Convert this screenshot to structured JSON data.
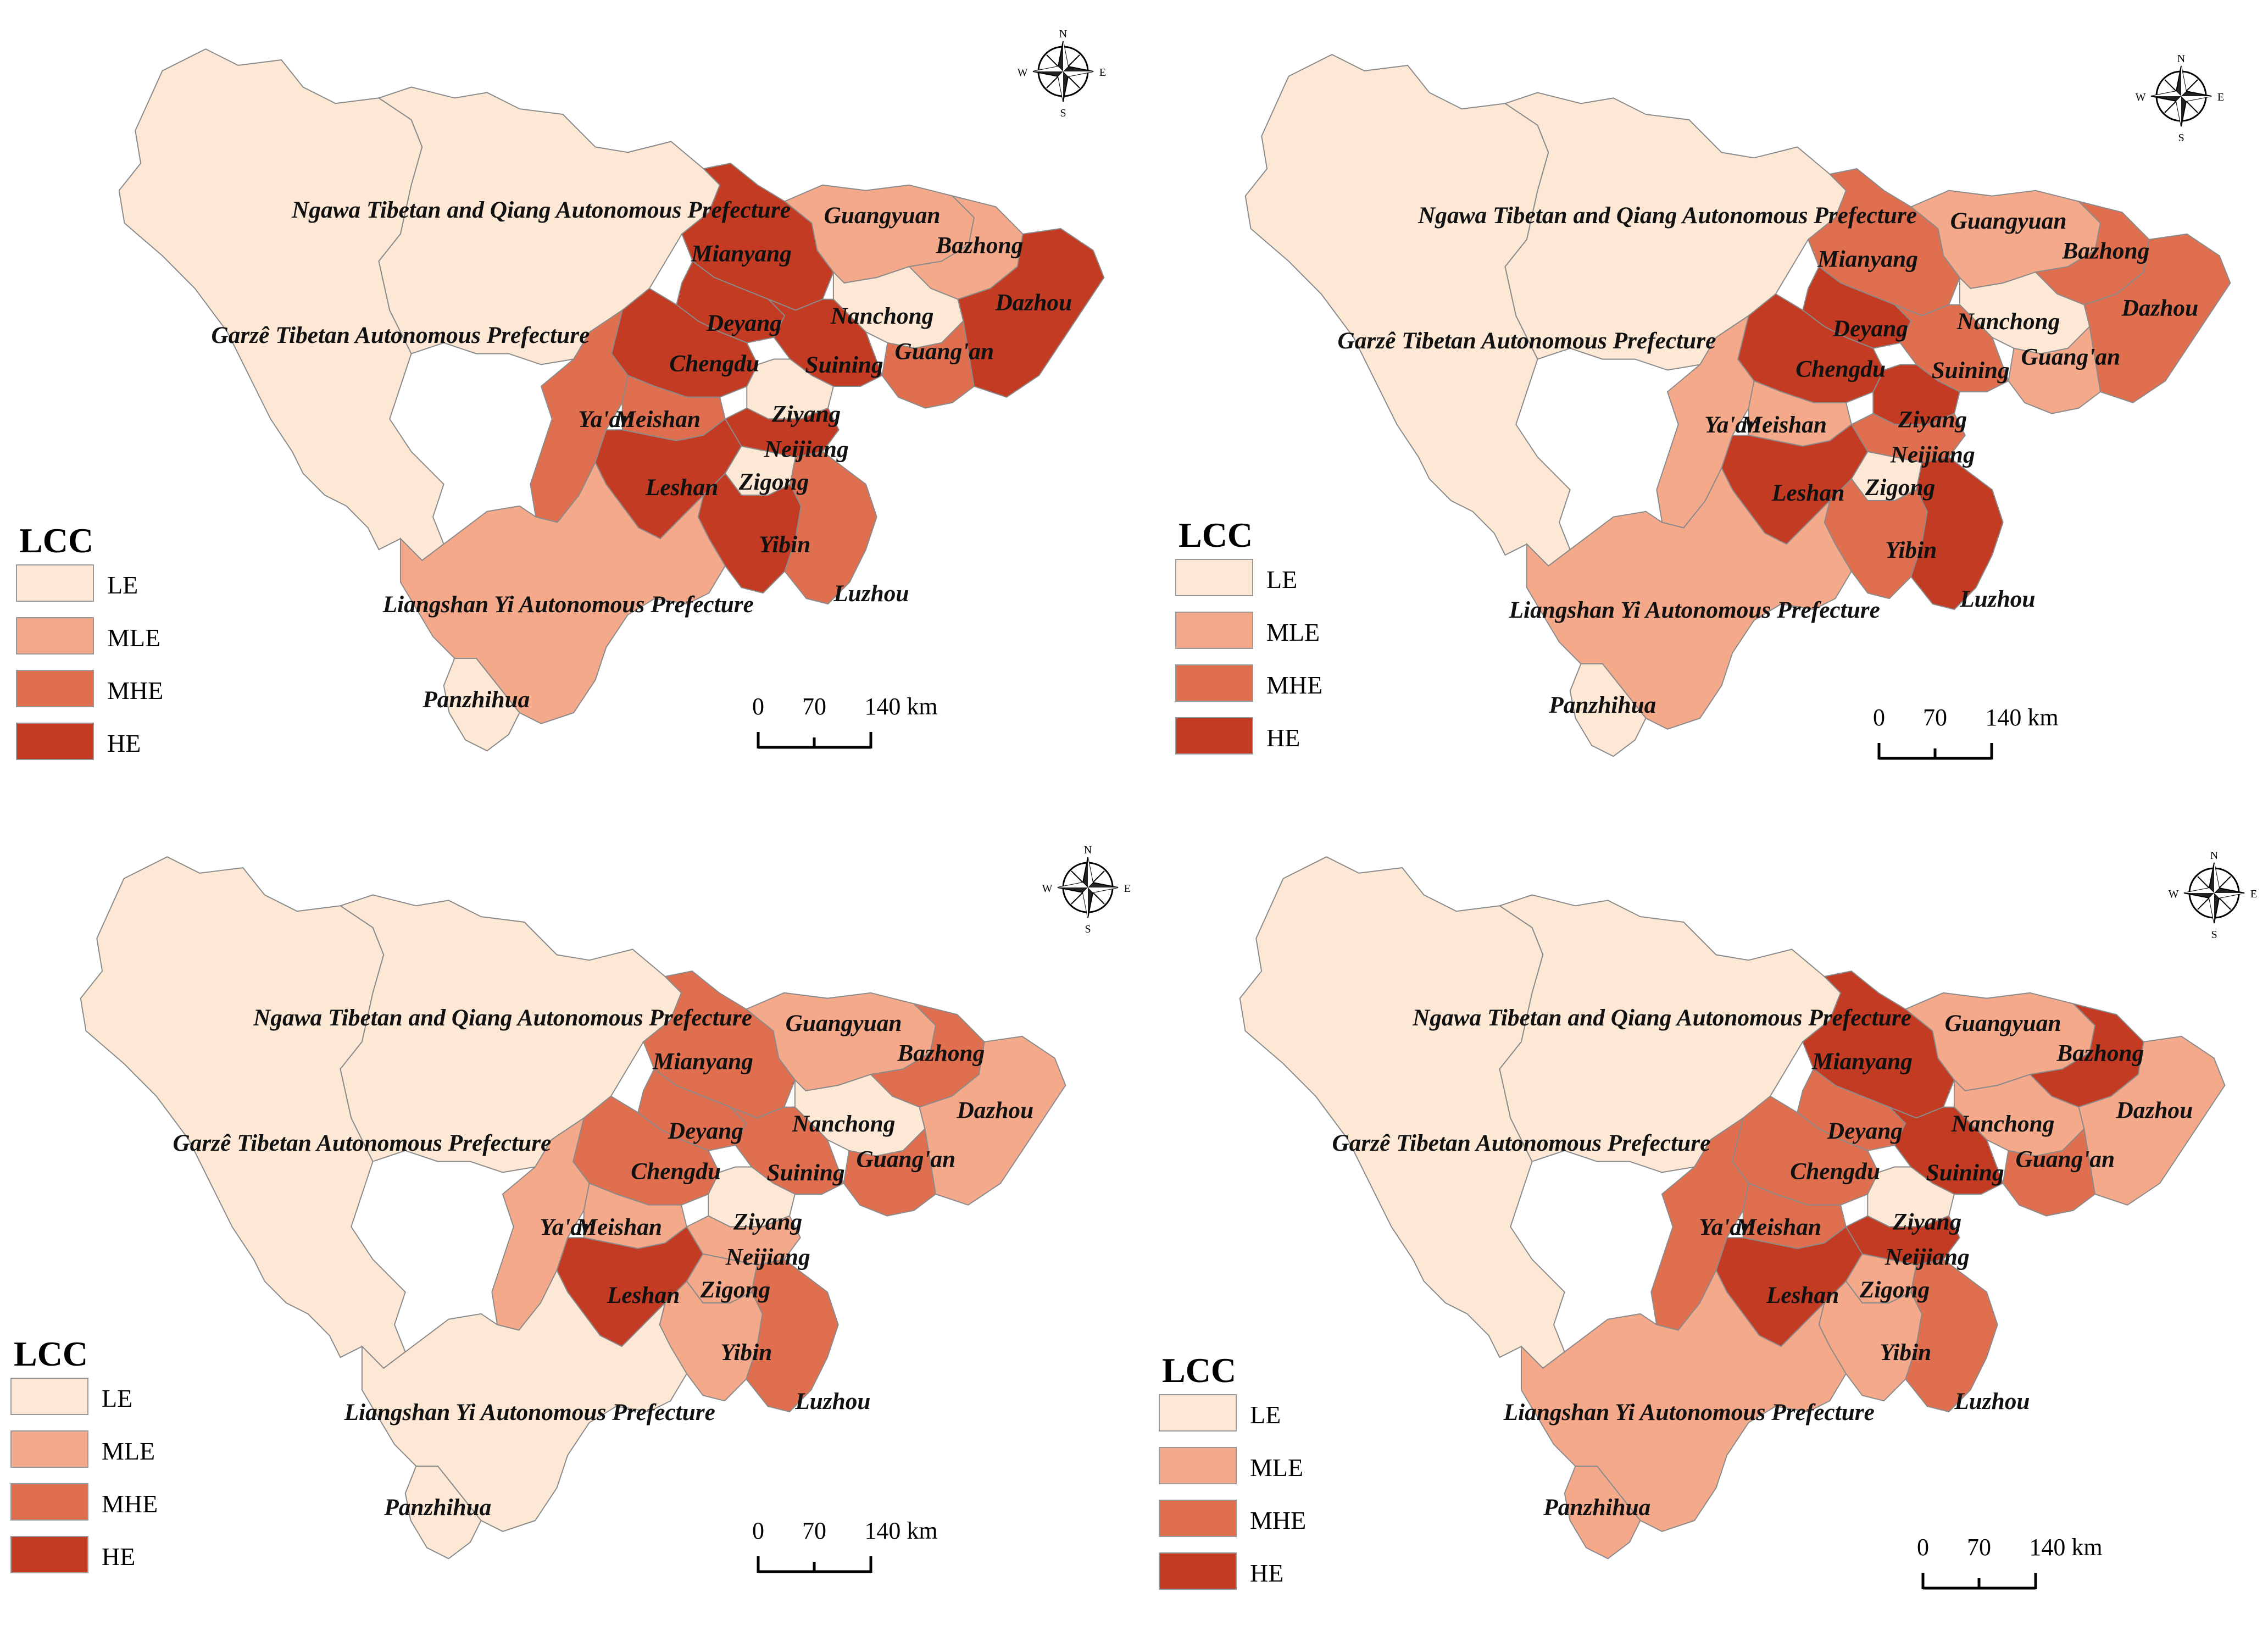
{
  "colors": {
    "LE": "#fde8d6",
    "MLE": "#f4a98a",
    "MHE": "#df6f4f",
    "HE": "#c23b22",
    "border": "#8a8a8a"
  },
  "legend": {
    "title": "LCC",
    "items": [
      {
        "key": "LE",
        "label": "LE"
      },
      {
        "key": "MLE",
        "label": "MLE"
      },
      {
        "key": "MHE",
        "label": "MHE"
      },
      {
        "key": "HE",
        "label": "HE"
      }
    ]
  },
  "scale": {
    "ticks": [
      "0",
      "70",
      "140 km"
    ]
  },
  "compass": {
    "n": "N",
    "s": "S",
    "e": "E",
    "w": "W"
  },
  "region_names": {
    "ngawa": "Ngawa Tibetan and Qiang Autonomous Prefecture",
    "garze": "Garzê Tibetan Autonomous Prefecture",
    "liangshan": "Liangshan Yi Autonomous Prefecture",
    "panzhihua": "Panzhihua",
    "guangyuan": "Guangyuan",
    "bazhong": "Bazhong",
    "dazhou": "Dazhou",
    "mianyang": "Mianyang",
    "nanchong": "Nanchong",
    "guangan": "Guang'an",
    "deyang": "Deyang",
    "chengdu": "Chengdu",
    "suining": "Suining",
    "yaan": "Ya'an",
    "meishan": "Meishan",
    "ziyang": "Ziyang",
    "neijiang": "Neijiang",
    "leshan": "Leshan",
    "zigong": "Zigong",
    "yibin": "Yibin",
    "luzhou": "Luzhou"
  },
  "maps": [
    {
      "classes": {
        "garze": "LE",
        "ngawa": "LE",
        "liangshan": "MLE",
        "panzhihua": "LE",
        "guangyuan": "MLE",
        "bazhong": "MLE",
        "dazhou": "HE",
        "mianyang": "HE",
        "nanchong": "LE",
        "guangan": "MHE",
        "deyang": "HE",
        "chengdu": "HE",
        "suining": "HE",
        "yaan": "MHE",
        "meishan": "MHE",
        "ziyang": "LE",
        "neijiang": "HE",
        "leshan": "HE",
        "zigong": "LE",
        "yibin": "HE",
        "luzhou": "MHE"
      }
    },
    {
      "classes": {
        "garze": "LE",
        "ngawa": "LE",
        "liangshan": "MLE",
        "panzhihua": "LE",
        "guangyuan": "MLE",
        "bazhong": "MHE",
        "dazhou": "MHE",
        "mianyang": "MHE",
        "nanchong": "LE",
        "guangan": "MLE",
        "deyang": "HE",
        "chengdu": "HE",
        "suining": "MHE",
        "yaan": "MLE",
        "meishan": "MLE",
        "ziyang": "HE",
        "neijiang": "MHE",
        "leshan": "HE",
        "zigong": "LE",
        "yibin": "MHE",
        "luzhou": "HE"
      }
    },
    {
      "classes": {
        "garze": "LE",
        "ngawa": "LE",
        "liangshan": "LE",
        "panzhihua": "LE",
        "guangyuan": "MLE",
        "bazhong": "MHE",
        "dazhou": "MLE",
        "mianyang": "MHE",
        "nanchong": "LE",
        "guangan": "MHE",
        "deyang": "MHE",
        "chengdu": "MHE",
        "suining": "MHE",
        "yaan": "MLE",
        "meishan": "MLE",
        "ziyang": "LE",
        "neijiang": "MLE",
        "leshan": "HE",
        "zigong": "MLE",
        "yibin": "MLE",
        "luzhou": "MHE"
      }
    },
    {
      "classes": {
        "garze": "LE",
        "ngawa": "LE",
        "liangshan": "MLE",
        "panzhihua": "MLE",
        "guangyuan": "MLE",
        "bazhong": "HE",
        "dazhou": "MLE",
        "mianyang": "HE",
        "nanchong": "MLE",
        "guangan": "MHE",
        "deyang": "MHE",
        "chengdu": "MHE",
        "suining": "HE",
        "yaan": "MHE",
        "meishan": "MHE",
        "ziyang": "LE",
        "neijiang": "HE",
        "leshan": "HE",
        "zigong": "MLE",
        "yibin": "MLE",
        "luzhou": "MHE"
      }
    }
  ]
}
